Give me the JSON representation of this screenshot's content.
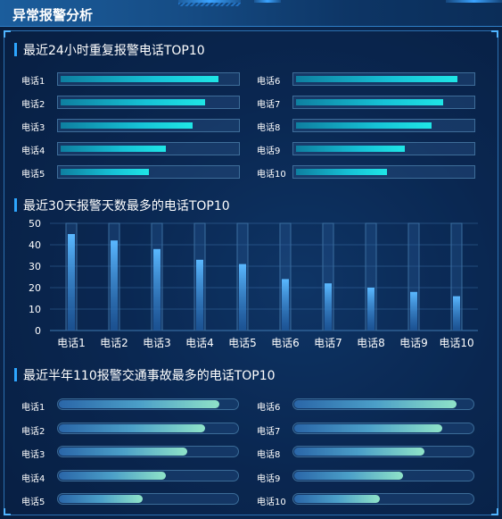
{
  "header": {
    "title": "异常报警分析"
  },
  "sections": {
    "top24h": {
      "title": "最近24小时重复报警电话TOP10",
      "items": [
        {
          "label": "电话1",
          "value": 0.9
        },
        {
          "label": "电话2",
          "value": 0.82
        },
        {
          "label": "电话3",
          "value": 0.75
        },
        {
          "label": "电话4",
          "value": 0.6
        },
        {
          "label": "电话5",
          "value": 0.5
        },
        {
          "label": "电话6",
          "value": 0.92
        },
        {
          "label": "电话7",
          "value": 0.84
        },
        {
          "label": "电话8",
          "value": 0.77
        },
        {
          "label": "电话9",
          "value": 0.62
        },
        {
          "label": "电话10",
          "value": 0.52
        }
      ]
    },
    "top30d": {
      "title": "最近30天报警天数最多的电话TOP10"
    },
    "top6m": {
      "title": "最近半年110报警交通事故最多的电话TOP10",
      "items": [
        {
          "label": "电话1",
          "value": 0.9
        },
        {
          "label": "电话2",
          "value": 0.82
        },
        {
          "label": "电话3",
          "value": 0.72
        },
        {
          "label": "电话4",
          "value": 0.6
        },
        {
          "label": "电话5",
          "value": 0.47
        },
        {
          "label": "电话6",
          "value": 0.91
        },
        {
          "label": "电话7",
          "value": 0.83
        },
        {
          "label": "电话8",
          "value": 0.73
        },
        {
          "label": "电话9",
          "value": 0.61
        },
        {
          "label": "电话10",
          "value": 0.48
        }
      ]
    }
  },
  "chart_data": {
    "type": "bar",
    "categories": [
      "电话1",
      "电话2",
      "电话3",
      "电话4",
      "电话5",
      "电话6",
      "电话7",
      "电话8",
      "电话9",
      "电话10"
    ],
    "values": [
      45,
      42,
      38,
      33,
      31,
      24,
      22,
      20,
      18,
      16
    ],
    "ylim": [
      0,
      50
    ],
    "yticks": [
      0,
      10,
      20,
      30,
      40,
      50
    ],
    "grid": true,
    "colors": {
      "bar_top": "#5ab8ff",
      "bar_bottom": "#1f5fa8",
      "track": "#3a6ea0"
    }
  }
}
